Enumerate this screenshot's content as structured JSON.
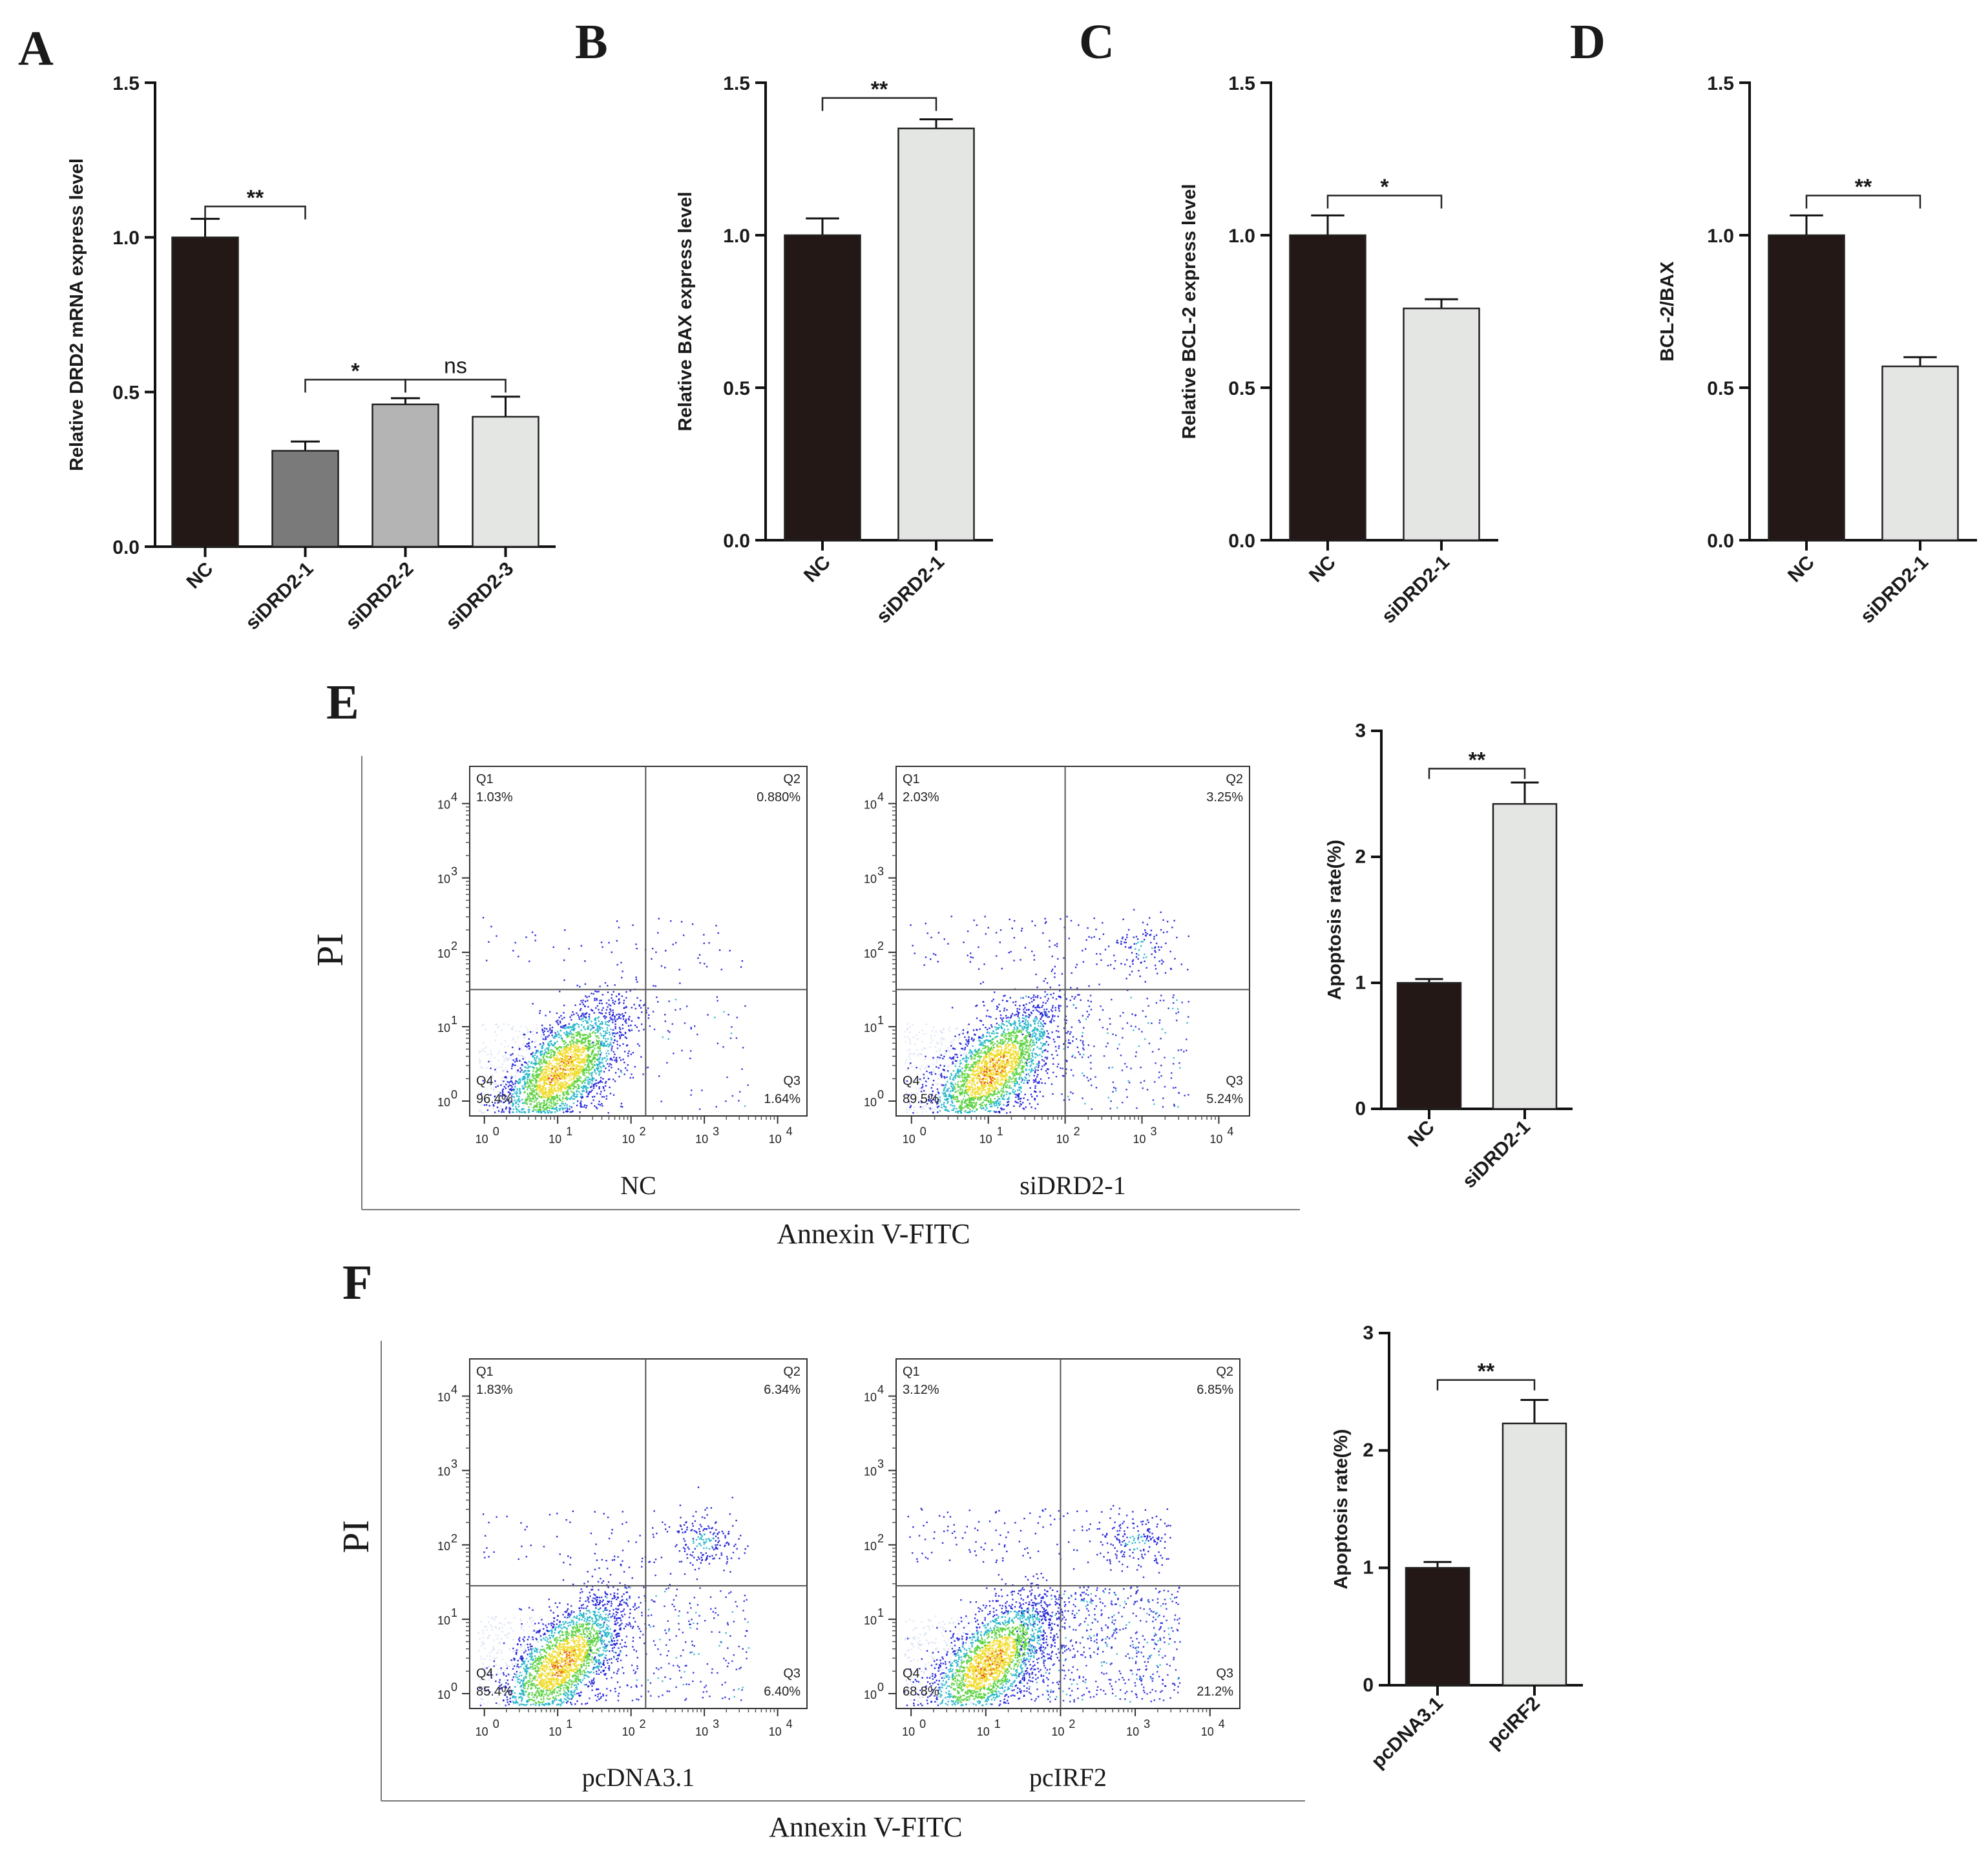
{
  "panel_letters": [
    "A",
    "B",
    "C",
    "D",
    "E",
    "F"
  ],
  "colors": {
    "nc": "#231815",
    "dark_gray": "#7a7a7a",
    "mid_gray": "#b4b4b4",
    "light_gray": "#e4e6e4",
    "flow_blue": "#1a1ad6",
    "flow_cyan": "#1eb4c8",
    "flow_green": "#58d23c",
    "flow_yellow": "#f0dc28",
    "flow_red": "#e64614",
    "flow_faint": "#c8d4ec"
  },
  "chart_data": [
    {
      "id": "A",
      "type": "bar",
      "title": "",
      "xlabel": "",
      "ylabel": "Relative DRD2 mRNA express level",
      "ylim": [
        0,
        1.5
      ],
      "yticks": [
        0.0,
        0.5,
        1.0,
        1.5
      ],
      "ytick_labels": [
        "0.0",
        "0.5",
        "1.0",
        "1.5"
      ],
      "categories": [
        "NC",
        "siDRD2-1",
        "siDRD2-2",
        "siDRD2-3"
      ],
      "values": [
        1.0,
        0.31,
        0.46,
        0.42
      ],
      "errors": [
        0.06,
        0.03,
        0.02,
        0.065
      ],
      "bar_colors": [
        "#231815",
        "#7a7a7a",
        "#b4b4b4",
        "#e4e6e4"
      ],
      "significance": [
        {
          "from": 0,
          "to": 1,
          "label": "**",
          "y": 1.1
        },
        {
          "from": 1,
          "to": 2,
          "label": "*",
          "y": 0.54
        },
        {
          "from": 2,
          "to": 3,
          "label": "ns",
          "y": 0.54
        }
      ]
    },
    {
      "id": "B",
      "type": "bar",
      "title": "",
      "xlabel": "",
      "ylabel": "Relative BAX express level",
      "ylim": [
        0,
        1.5
      ],
      "yticks": [
        0.0,
        0.5,
        1.0,
        1.5
      ],
      "ytick_labels": [
        "0.0",
        "0.5",
        "1.0",
        "1.5"
      ],
      "categories": [
        "NC",
        "siDRD2-1"
      ],
      "values": [
        1.0,
        1.35
      ],
      "errors": [
        0.055,
        0.03
      ],
      "bar_colors": [
        "#231815",
        "#e4e6e4"
      ],
      "significance": [
        {
          "from": 0,
          "to": 1,
          "label": "**",
          "y": 1.45
        }
      ]
    },
    {
      "id": "C",
      "type": "bar",
      "title": "",
      "xlabel": "",
      "ylabel": "Relative BCL-2 express level",
      "ylim": [
        0,
        1.5
      ],
      "yticks": [
        0.0,
        0.5,
        1.0,
        1.5
      ],
      "ytick_labels": [
        "0.0",
        "0.5",
        "1.0",
        "1.5"
      ],
      "categories": [
        "NC",
        "siDRD2-1"
      ],
      "values": [
        1.0,
        0.76
      ],
      "errors": [
        0.065,
        0.03
      ],
      "bar_colors": [
        "#231815",
        "#e4e6e4"
      ],
      "significance": [
        {
          "from": 0,
          "to": 1,
          "label": "*",
          "y": 1.13
        }
      ]
    },
    {
      "id": "D",
      "type": "bar",
      "title": "",
      "xlabel": "",
      "ylabel": "BCL-2/BAX",
      "ylim": [
        0,
        1.5
      ],
      "yticks": [
        0.0,
        0.5,
        1.0,
        1.5
      ],
      "ytick_labels": [
        "0.0",
        "0.5",
        "1.0",
        "1.5"
      ],
      "categories": [
        "NC",
        "siDRD2-1"
      ],
      "values": [
        1.0,
        0.57
      ],
      "errors": [
        0.065,
        0.03
      ],
      "bar_colors": [
        "#231815",
        "#e4e6e4"
      ],
      "significance": [
        {
          "from": 0,
          "to": 1,
          "label": "**",
          "y": 1.13
        }
      ]
    },
    {
      "id": "E-bar",
      "type": "bar",
      "title": "",
      "xlabel": "",
      "ylabel": "Apoptosis rate(%)",
      "ylim": [
        0,
        3
      ],
      "yticks": [
        0,
        1,
        2,
        3
      ],
      "ytick_labels": [
        "0",
        "1",
        "2",
        "3"
      ],
      "categories": [
        "NC",
        "siDRD2-1"
      ],
      "values": [
        1.0,
        2.42
      ],
      "errors": [
        0.03,
        0.17
      ],
      "bar_colors": [
        "#231815",
        "#e4e6e4"
      ],
      "significance": [
        {
          "from": 0,
          "to": 1,
          "label": "**",
          "y": 2.7
        }
      ]
    },
    {
      "id": "F-bar",
      "type": "bar",
      "title": "",
      "xlabel": "",
      "ylabel": "Apoptosis rate(%)",
      "ylim": [
        0,
        3
      ],
      "yticks": [
        0,
        1,
        2,
        3
      ],
      "ytick_labels": [
        "0",
        "1",
        "2",
        "3"
      ],
      "categories": [
        "pcDNA3.1",
        "pcIRF2"
      ],
      "values": [
        1.0,
        2.23
      ],
      "errors": [
        0.05,
        0.2
      ],
      "bar_colors": [
        "#231815",
        "#e4e6e4"
      ],
      "significance": [
        {
          "from": 0,
          "to": 1,
          "label": "**",
          "y": 2.6
        }
      ]
    }
  ],
  "flow_panels": [
    {
      "id": "E",
      "ylabel": "PI",
      "xlabel": "Annexin V-FITC",
      "plots": [
        {
          "sample": "NC",
          "gate_x": 2.2,
          "gate_y": 1.5,
          "quadrants": {
            "Q1": "1.03%",
            "Q2": "0.880%",
            "Q3": "1.64%",
            "Q4": "96.4%"
          },
          "seed": 11,
          "n_main": 2600,
          "n_upper": 55,
          "n_right": 70,
          "n_cluster": 0
        },
        {
          "sample": "siDRD2-1",
          "gate_x": 2.0,
          "gate_y": 1.5,
          "quadrants": {
            "Q1": "2.03%",
            "Q2": "3.25%",
            "Q3": "5.24%",
            "Q4": "89.5%"
          },
          "seed": 23,
          "n_main": 2500,
          "n_upper": 110,
          "n_right": 230,
          "n_cluster": 90
        }
      ]
    },
    {
      "id": "F",
      "ylabel": "PI",
      "xlabel": "Annexin V-FITC",
      "plots": [
        {
          "sample": "pcDNA3.1",
          "gate_x": 2.2,
          "gate_y": 1.45,
          "quadrants": {
            "Q1": "1.83%",
            "Q2": "6.34%",
            "Q3": "6.40%",
            "Q4": "85.4%"
          },
          "seed": 37,
          "n_main": 2400,
          "n_upper": 90,
          "n_right": 260,
          "n_cluster": 160
        },
        {
          "sample": "pcIRF2",
          "gate_x": 2.0,
          "gate_y": 1.45,
          "quadrants": {
            "Q1": "3.12%",
            "Q2": "6.85%",
            "Q3": "21.2%",
            "Q4": "68.8%"
          },
          "seed": 53,
          "n_main": 2400,
          "n_upper": 150,
          "n_right": 620,
          "n_cluster": 140
        }
      ]
    }
  ],
  "flow_axis": {
    "tick_labels": [
      "10",
      "10",
      "10",
      "10",
      "10"
    ],
    "tick_exponents": [
      "0",
      "1",
      "2",
      "3",
      "4"
    ]
  }
}
